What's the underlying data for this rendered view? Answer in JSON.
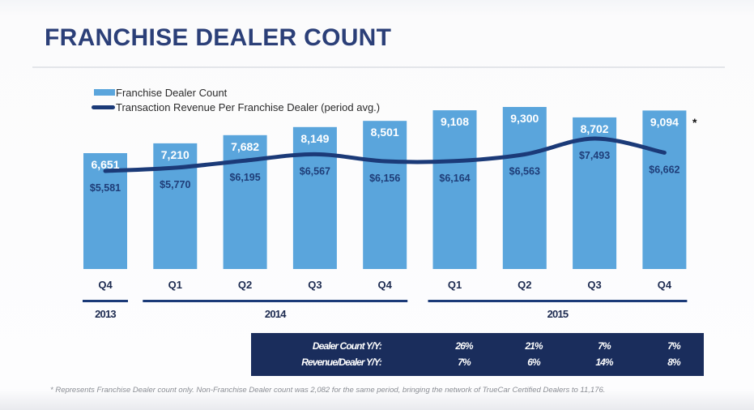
{
  "title": "FRANCHISE DEALER COUNT",
  "colors": {
    "bar": "#5aa5dc",
    "line": "#1b3a78",
    "title": "#2b3f78",
    "table_bg": "#1a2d5c"
  },
  "chart_data": {
    "type": "bar",
    "title": "FRANCHISE DEALER COUNT",
    "legend": [
      "Franchise Dealer Count",
      "Transaction Revenue Per Franchise Dealer (period avg.)"
    ],
    "legend_position": "top-left",
    "categories": [
      "Q4",
      "Q1",
      "Q2",
      "Q3",
      "Q4",
      "Q1",
      "Q2",
      "Q3",
      "Q4"
    ],
    "year_groups": [
      {
        "label": "2013",
        "start": 0,
        "end": 0
      },
      {
        "label": "2014",
        "start": 1,
        "end": 4
      },
      {
        "label": "2015",
        "start": 5,
        "end": 8
      }
    ],
    "series": [
      {
        "name": "Franchise Dealer Count",
        "type": "bar",
        "values": [
          6651,
          7210,
          7682,
          8149,
          8501,
          9108,
          9300,
          8702,
          9094
        ],
        "labels": [
          "6,651",
          "7,210",
          "7,682",
          "8,149",
          "8,501",
          "9,108",
          "9,300",
          "8,702",
          "9,094"
        ]
      },
      {
        "name": "Transaction Revenue Per Franchise Dealer (period avg.)",
        "type": "line",
        "values": [
          5581,
          5770,
          6195,
          6567,
          6156,
          6164,
          6563,
          7493,
          6662
        ],
        "labels": [
          "$5,581",
          "$5,770",
          "$6,195",
          "$6,567",
          "$6,156",
          "$6,164",
          "$6,563",
          "$7,493",
          "$6,662"
        ]
      }
    ],
    "annotations": [
      "*"
    ],
    "grid": false,
    "xlabel": "",
    "ylabel": ""
  },
  "yoy_table": {
    "rows": [
      {
        "label": "Dealer Count Y/Y:",
        "values": [
          "26%",
          "21%",
          "7%",
          "7%"
        ]
      },
      {
        "label": "Revenue/Dealer Y/Y:",
        "values": [
          "7%",
          "6%",
          "14%",
          "8%"
        ]
      }
    ]
  },
  "footnote": "* Represents Franchise Dealer count only. Non-Franchise Dealer count was 2,082 for the same period, bringing the network of TrueCar Certified Dealers to 11,176."
}
